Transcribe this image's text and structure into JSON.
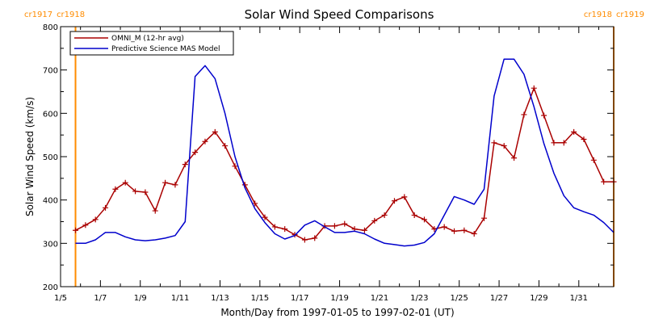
{
  "chart_data": {
    "type": "line",
    "title": "Solar Wind Speed Comparisons",
    "xlabel": "Month/Day from 1997-01-05 to 1997-02-01 (UT)",
    "ylabel": "Solar Wind Speed (km/s)",
    "xlim": [
      "1997-01-05",
      "1997-02-01 18:00"
    ],
    "ylim": [
      200,
      800
    ],
    "x_ticks": [
      {
        "date": "1997-01-05",
        "label": "1/5"
      },
      {
        "date": "1997-01-07",
        "label": "1/7"
      },
      {
        "date": "1997-01-09",
        "label": "1/9"
      },
      {
        "date": "1997-01-11",
        "label": "1/11"
      },
      {
        "date": "1997-01-13",
        "label": "1/13"
      },
      {
        "date": "1997-01-15",
        "label": "1/15"
      },
      {
        "date": "1997-01-17",
        "label": "1/17"
      },
      {
        "date": "1997-01-19",
        "label": "1/19"
      },
      {
        "date": "1997-01-21",
        "label": "1/21"
      },
      {
        "date": "1997-01-23",
        "label": "1/23"
      },
      {
        "date": "1997-01-25",
        "label": "1/25"
      },
      {
        "date": "1997-01-27",
        "label": "1/27"
      },
      {
        "date": "1997-01-29",
        "label": "1/29"
      },
      {
        "date": "1997-01-31",
        "label": "1/31"
      }
    ],
    "y_ticks": [
      200,
      300,
      400,
      500,
      600,
      700,
      800
    ],
    "grid": false,
    "legend_position": "top-left",
    "series": [
      {
        "name": "OMNI_M (12-hr avg)",
        "color": "#aa0000",
        "marker": "plus",
        "points": [
          [
            "1997-01-05 18:00",
            330
          ],
          [
            "1997-01-06 06:00",
            342
          ],
          [
            "1997-01-06 18:00",
            355
          ],
          [
            "1997-01-07 06:00",
            382
          ],
          [
            "1997-01-07 18:00",
            425
          ],
          [
            "1997-01-08 06:00",
            440
          ],
          [
            "1997-01-08 18:00",
            420
          ],
          [
            "1997-01-09 06:00",
            418
          ],
          [
            "1997-01-09 18:00",
            375
          ],
          [
            "1997-01-10 06:00",
            440
          ],
          [
            "1997-01-10 18:00",
            435
          ],
          [
            "1997-01-11 06:00",
            482
          ],
          [
            "1997-01-11 18:00",
            510
          ],
          [
            "1997-01-12 06:00",
            535
          ],
          [
            "1997-01-12 18:00",
            557
          ],
          [
            "1997-01-13 06:00",
            525
          ],
          [
            "1997-01-13 18:00",
            478
          ],
          [
            "1997-01-14 06:00",
            435
          ],
          [
            "1997-01-14 18:00",
            392
          ],
          [
            "1997-01-15 06:00",
            360
          ],
          [
            "1997-01-15 18:00",
            338
          ],
          [
            "1997-01-16 06:00",
            333
          ],
          [
            "1997-01-16 18:00",
            320
          ],
          [
            "1997-01-17 06:00",
            308
          ],
          [
            "1997-01-17 18:00",
            312
          ],
          [
            "1997-01-18 06:00",
            340
          ],
          [
            "1997-01-18 18:00",
            340
          ],
          [
            "1997-01-19 06:00",
            345
          ],
          [
            "1997-01-19 18:00",
            333
          ],
          [
            "1997-01-20 06:00",
            330
          ],
          [
            "1997-01-20 18:00",
            352
          ],
          [
            "1997-01-21 06:00",
            365
          ],
          [
            "1997-01-21 18:00",
            398
          ],
          [
            "1997-01-22 06:00",
            407
          ],
          [
            "1997-01-22 18:00",
            365
          ],
          [
            "1997-01-23 06:00",
            355
          ],
          [
            "1997-01-23 18:00",
            333
          ],
          [
            "1997-01-24 06:00",
            338
          ],
          [
            "1997-01-24 18:00",
            328
          ],
          [
            "1997-01-25 06:00",
            330
          ],
          [
            "1997-01-25 18:00",
            322
          ],
          [
            "1997-01-26 06:00",
            358
          ],
          [
            "1997-01-26 18:00",
            532
          ],
          [
            "1997-01-27 06:00",
            525
          ],
          [
            "1997-01-27 18:00",
            497
          ],
          [
            "1997-01-28 06:00",
            597
          ],
          [
            "1997-01-28 18:00",
            658
          ],
          [
            "1997-01-29 06:00",
            595
          ],
          [
            "1997-01-29 18:00",
            532
          ],
          [
            "1997-01-30 06:00",
            532
          ],
          [
            "1997-01-30 18:00",
            557
          ],
          [
            "1997-01-31 06:00",
            540
          ],
          [
            "1997-01-31 18:00",
            492
          ],
          [
            "1997-02-01 06:00",
            442
          ],
          [
            "1997-02-01 18:00",
            442
          ]
        ]
      },
      {
        "name": "Predictive Science MAS Model",
        "color": "#0000cc",
        "marker": "none",
        "points": [
          [
            "1997-01-05 18:00",
            300
          ],
          [
            "1997-01-06 06:00",
            300
          ],
          [
            "1997-01-06 18:00",
            308
          ],
          [
            "1997-01-07 06:00",
            325
          ],
          [
            "1997-01-07 18:00",
            325
          ],
          [
            "1997-01-08 06:00",
            315
          ],
          [
            "1997-01-08 18:00",
            308
          ],
          [
            "1997-01-09 06:00",
            306
          ],
          [
            "1997-01-09 18:00",
            308
          ],
          [
            "1997-01-10 06:00",
            312
          ],
          [
            "1997-01-10 18:00",
            318
          ],
          [
            "1997-01-11 06:00",
            350
          ],
          [
            "1997-01-11 18:00",
            685
          ],
          [
            "1997-01-12 06:00",
            710
          ],
          [
            "1997-01-12 18:00",
            680
          ],
          [
            "1997-01-13 06:00",
            600
          ],
          [
            "1997-01-13 18:00",
            500
          ],
          [
            "1997-01-14 06:00",
            428
          ],
          [
            "1997-01-14 18:00",
            380
          ],
          [
            "1997-01-15 06:00",
            348
          ],
          [
            "1997-01-15 18:00",
            322
          ],
          [
            "1997-01-16 06:00",
            310
          ],
          [
            "1997-01-16 18:00",
            318
          ],
          [
            "1997-01-17 06:00",
            342
          ],
          [
            "1997-01-17 18:00",
            352
          ],
          [
            "1997-01-18 06:00",
            338
          ],
          [
            "1997-01-18 18:00",
            325
          ],
          [
            "1997-01-19 06:00",
            325
          ],
          [
            "1997-01-19 18:00",
            328
          ],
          [
            "1997-01-20 06:00",
            322
          ],
          [
            "1997-01-20 18:00",
            310
          ],
          [
            "1997-01-21 06:00",
            300
          ],
          [
            "1997-01-21 18:00",
            297
          ],
          [
            "1997-01-22 06:00",
            294
          ],
          [
            "1997-01-22 18:00",
            296
          ],
          [
            "1997-01-23 06:00",
            302
          ],
          [
            "1997-01-23 18:00",
            322
          ],
          [
            "1997-01-24 06:00",
            365
          ],
          [
            "1997-01-24 18:00",
            408
          ],
          [
            "1997-01-25 06:00",
            400
          ],
          [
            "1997-01-25 18:00",
            390
          ],
          [
            "1997-01-26 06:00",
            425
          ],
          [
            "1997-01-26 18:00",
            640
          ],
          [
            "1997-01-27 06:00",
            725
          ],
          [
            "1997-01-27 18:00",
            725
          ],
          [
            "1997-01-28 06:00",
            690
          ],
          [
            "1997-01-28 18:00",
            615
          ],
          [
            "1997-01-29 06:00",
            530
          ],
          [
            "1997-01-29 18:00",
            462
          ],
          [
            "1997-01-30 06:00",
            410
          ],
          [
            "1997-01-30 18:00",
            382
          ],
          [
            "1997-01-31 06:00",
            373
          ],
          [
            "1997-01-31 18:00",
            365
          ],
          [
            "1997-02-01 06:00",
            348
          ],
          [
            "1997-02-01 18:00",
            325
          ]
        ]
      }
    ],
    "markers": [
      {
        "date": "1997-01-05 18:00",
        "color": "#ff8c00",
        "labels": [
          "cr1917",
          "cr1918"
        ],
        "label_side": "left"
      },
      {
        "date": "1997-02-01 18:00",
        "color": "#ff8c00",
        "labels": [
          "cr1918",
          "cr1919"
        ],
        "label_side": "right"
      }
    ]
  }
}
